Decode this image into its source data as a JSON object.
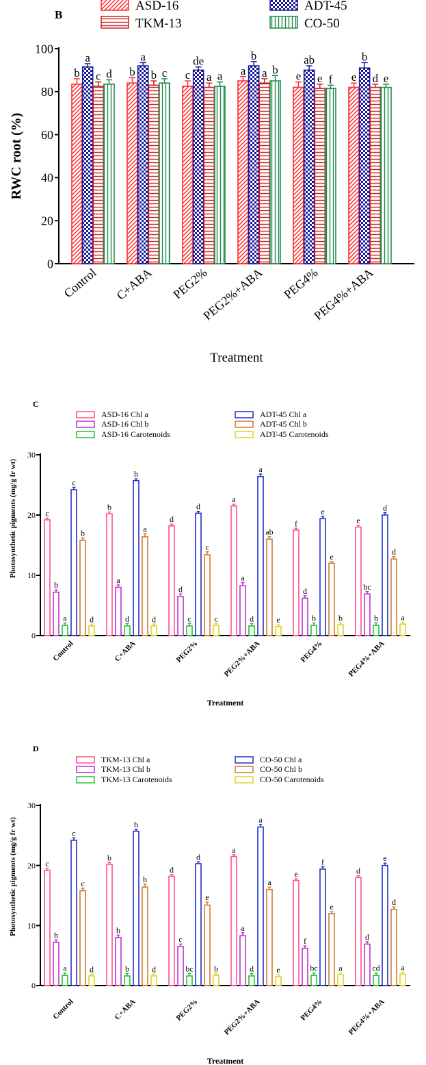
{
  "chart_data": [
    {
      "panel": "B",
      "type": "bar",
      "ylabel": "RWC root (%)",
      "xlabel": "Treatment",
      "ylim": [
        0,
        100
      ],
      "yticks": [
        0,
        20,
        40,
        60,
        80,
        100
      ],
      "legend_placement": "top",
      "categories": [
        "Control",
        "C+ABA",
        "PEG2%",
        "PEG2%+ABA",
        "PEG4%",
        "PEG4%+ABA"
      ],
      "series": [
        {
          "name": "ASD-16",
          "color": "#ff2a2a",
          "pattern": "diagonal-hatch",
          "values": [
            83.5,
            84,
            82.5,
            85,
            82,
            82
          ],
          "errors": [
            2.5,
            2.5,
            2.5,
            2,
            2.5,
            2
          ],
          "letters": [
            "b",
            "b",
            "c",
            "a",
            "e",
            "e"
          ]
        },
        {
          "name": "ADT-45",
          "color": "#1a1a99",
          "pattern": "checker",
          "values": [
            91.5,
            92,
            90,
            92,
            90,
            91
          ],
          "errors": [
            1.5,
            1.5,
            1.5,
            2,
            2,
            2.5
          ],
          "letters": [
            "a",
            "a",
            "de",
            "b",
            "ab",
            "b"
          ]
        },
        {
          "name": "TKM-13",
          "color": "#cc1f1f",
          "pattern": "horizontal-lines",
          "values": [
            82.5,
            83,
            82,
            84,
            81.5,
            82
          ],
          "errors": [
            2,
            2,
            2,
            2,
            2,
            1.5
          ],
          "letters": [
            "c",
            "b",
            "a",
            "a",
            "e",
            "d"
          ]
        },
        {
          "name": "CO-50",
          "color": "#1f8a4c",
          "pattern": "vertical-lines",
          "values": [
            83.5,
            84,
            82.5,
            85,
            81.5,
            82
          ],
          "errors": [
            2,
            2,
            2,
            2.5,
            1.5,
            1.5
          ],
          "letters": [
            "d",
            "c",
            "a",
            "b",
            "f",
            "e"
          ]
        }
      ]
    },
    {
      "panel": "C",
      "type": "bar",
      "ylabel": "Photosynthetic pigments (mg/g fr wt)",
      "xlabel": "Treatment",
      "ylim": [
        0,
        30
      ],
      "yticks": [
        0,
        10,
        20,
        30
      ],
      "legend_placement": "top",
      "categories": [
        "Control",
        "C+ABA",
        "PEG2%",
        "PEG2%+ABA",
        "PEG4%",
        "PEG4%+ABA"
      ],
      "series": [
        {
          "name": "ASD-16 Chl a",
          "color": "#ff4f8b",
          "values": [
            19.2,
            20.2,
            18.2,
            21.5,
            17.5,
            18
          ],
          "errors": [
            0.3,
            0.3,
            0.3,
            0.3,
            0.3,
            0.3
          ],
          "letters": [
            "c",
            "b",
            "d",
            "a",
            "f",
            "e"
          ]
        },
        {
          "name": "ASD-16 Chl b",
          "color": "#c02fd0",
          "values": [
            7.2,
            8,
            6.5,
            8.3,
            6.2,
            6.9
          ],
          "errors": [
            0.4,
            0.4,
            0.4,
            0.5,
            0.4,
            0.4
          ],
          "letters": [
            "b",
            "a",
            "d",
            "a",
            "d",
            "bc"
          ]
        },
        {
          "name": "ASD-16 Carotenoids",
          "color": "#22c22b",
          "values": [
            1.7,
            1.6,
            1.6,
            1.6,
            1.7,
            1.7
          ],
          "errors": [
            0.4,
            0.4,
            0.4,
            0.4,
            0.4,
            0.4
          ],
          "letters": [
            "a",
            "d",
            "c",
            "d",
            "b",
            "b"
          ]
        },
        {
          "name": "ADT-45 Chl a",
          "color": "#2030c8",
          "values": [
            24.2,
            25.7,
            20.3,
            26.4,
            19.4,
            20
          ],
          "errors": [
            0.4,
            0.3,
            0.3,
            0.4,
            0.4,
            0.4
          ],
          "letters": [
            "c",
            "b",
            "d",
            "a",
            "e",
            "d"
          ]
        },
        {
          "name": "ADT-45 Chl b",
          "color": "#d2782f",
          "values": [
            15.8,
            16.4,
            13.4,
            16,
            12,
            12.7
          ],
          "errors": [
            0.4,
            0.5,
            0.5,
            0.4,
            0.3,
            0.4
          ],
          "letters": [
            "b",
            "a",
            "c",
            "ab",
            "e",
            "d"
          ]
        },
        {
          "name": "ADT-45 Carotenoids",
          "color": "#e0d31e",
          "values": [
            1.6,
            1.6,
            1.7,
            1.5,
            1.8,
            1.9
          ],
          "errors": [
            0.3,
            0.3,
            0.3,
            0.3,
            0.3,
            0.3
          ],
          "letters": [
            "d",
            "d",
            "c",
            "e",
            "b",
            "a"
          ]
        }
      ]
    },
    {
      "panel": "D",
      "type": "bar",
      "ylabel": "Photosynthetic pigments (mg/g fr wt)",
      "xlabel": "Treatment",
      "ylim": [
        0,
        30
      ],
      "yticks": [
        0,
        10,
        20,
        30
      ],
      "legend_placement": "top",
      "categories": [
        "Control",
        "C+ABA",
        "PEG2%",
        "PEG2%+ABA",
        "PEG4%",
        "PEG4%+ABA"
      ],
      "series": [
        {
          "name": "TKM-13 Chl a",
          "color": "#ff4f8b",
          "values": [
            19.2,
            20.2,
            18.2,
            21.5,
            17.5,
            18
          ],
          "errors": [
            0.3,
            0.3,
            0.3,
            0.3,
            0.3,
            0.3
          ],
          "letters": [
            "c",
            "b",
            "d",
            "a",
            "e",
            "d"
          ]
        },
        {
          "name": "TKM-13 Chl b",
          "color": "#c02fd0",
          "values": [
            7.2,
            8,
            6.5,
            8.3,
            6.2,
            6.9
          ],
          "errors": [
            0.4,
            0.4,
            0.4,
            0.5,
            0.4,
            0.4
          ],
          "letters": [
            "b",
            "b",
            "c",
            "a",
            "f",
            "d"
          ]
        },
        {
          "name": "TKM-13 Carotenoids",
          "color": "#22c22b",
          "values": [
            1.7,
            1.6,
            1.6,
            1.6,
            1.7,
            1.7
          ],
          "errors": [
            0.4,
            0.4,
            0.4,
            0.4,
            0.4,
            0.4
          ],
          "letters": [
            "a",
            "b",
            "bc",
            "d",
            "bc",
            "cd"
          ]
        },
        {
          "name": "CO-50 Chl a",
          "color": "#2030c8",
          "values": [
            24.2,
            25.7,
            20.3,
            26.4,
            19.4,
            20
          ],
          "errors": [
            0.4,
            0.3,
            0.3,
            0.4,
            0.4,
            0.4
          ],
          "letters": [
            "c",
            "b",
            "d",
            "a",
            "f",
            "e"
          ]
        },
        {
          "name": "CO-50 Chl b",
          "color": "#d2782f",
          "values": [
            15.8,
            16.4,
            13.4,
            16,
            12,
            12.7
          ],
          "errors": [
            0.4,
            0.5,
            0.5,
            0.4,
            0.3,
            0.4
          ],
          "letters": [
            "c",
            "b",
            "e",
            "a",
            "e",
            "d"
          ]
        },
        {
          "name": "CO-50 Carotenoids",
          "color": "#e0d31e",
          "values": [
            1.6,
            1.6,
            1.7,
            1.5,
            1.8,
            1.9
          ],
          "errors": [
            0.3,
            0.3,
            0.3,
            0.3,
            0.3,
            0.3
          ],
          "letters": [
            "d",
            "d",
            "b",
            "e",
            "a",
            "a"
          ]
        }
      ]
    }
  ]
}
